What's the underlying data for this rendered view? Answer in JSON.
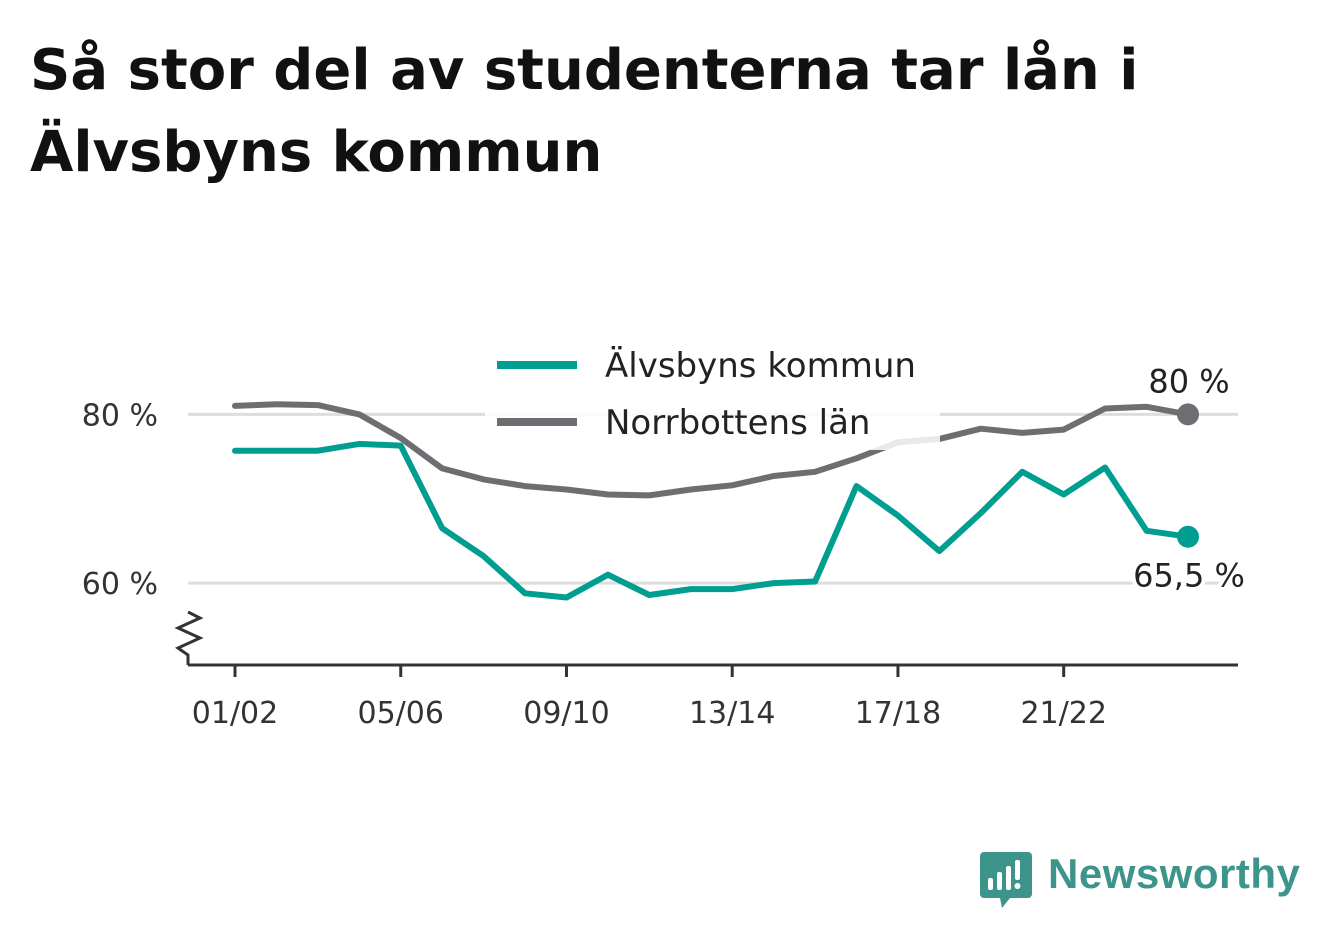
{
  "title": "Så stor del av studenterna tar lån i Älvsbyns kommun",
  "colors": {
    "alvsbyn": "#009e90",
    "norrbotten": "#6e6d72",
    "grid": "#dddddd",
    "axis": "#333333",
    "brand": "#3c948b"
  },
  "brand": {
    "name": "Newsworthy",
    "icon": "newsworthy-logo-icon"
  },
  "chart_data": {
    "type": "line",
    "title": "Så stor del av studenterna tar lån i Älvsbyns kommun",
    "xlabel": "",
    "ylabel": "",
    "x": [
      "01/02",
      "02/03",
      "03/04",
      "04/05",
      "05/06",
      "06/07",
      "07/08",
      "08/09",
      "09/10",
      "10/11",
      "11/12",
      "12/13",
      "13/14",
      "14/15",
      "15/16",
      "16/17",
      "17/18",
      "18/19",
      "19/20",
      "20/21",
      "21/22",
      "22/23",
      "23/24",
      "24/25"
    ],
    "x_tick_labels": [
      "01/02",
      "05/06",
      "09/10",
      "13/14",
      "17/18",
      "21/22"
    ],
    "y_tick_labels": [
      "60 %",
      "80 %"
    ],
    "yticks": [
      60,
      80
    ],
    "ylim": [
      50.3,
      90
    ],
    "broken_axis": true,
    "grid": true,
    "legend_position": "top-center",
    "series": [
      {
        "name": "Älvsbyns kommun",
        "color": "#009e90",
        "values": [
          75.7,
          75.7,
          75.7,
          76.5,
          76.3,
          66.5,
          63.2,
          58.8,
          58.3,
          61.0,
          58.6,
          59.3,
          59.3,
          60.0,
          60.2,
          71.5,
          68.0,
          63.8,
          68.3,
          73.2,
          70.5,
          73.7,
          66.2,
          65.5
        ],
        "end_label": "65,5 %"
      },
      {
        "name": "Norrbottens län",
        "color": "#6e6d72",
        "values": [
          81.0,
          81.2,
          81.1,
          80.0,
          77.2,
          73.6,
          72.3,
          71.5,
          71.1,
          70.5,
          70.4,
          71.1,
          71.6,
          72.7,
          73.2,
          74.8,
          76.7,
          77.1,
          78.3,
          77.8,
          78.2,
          80.7,
          80.9,
          80.0
        ],
        "end_label": "80 %"
      }
    ]
  }
}
